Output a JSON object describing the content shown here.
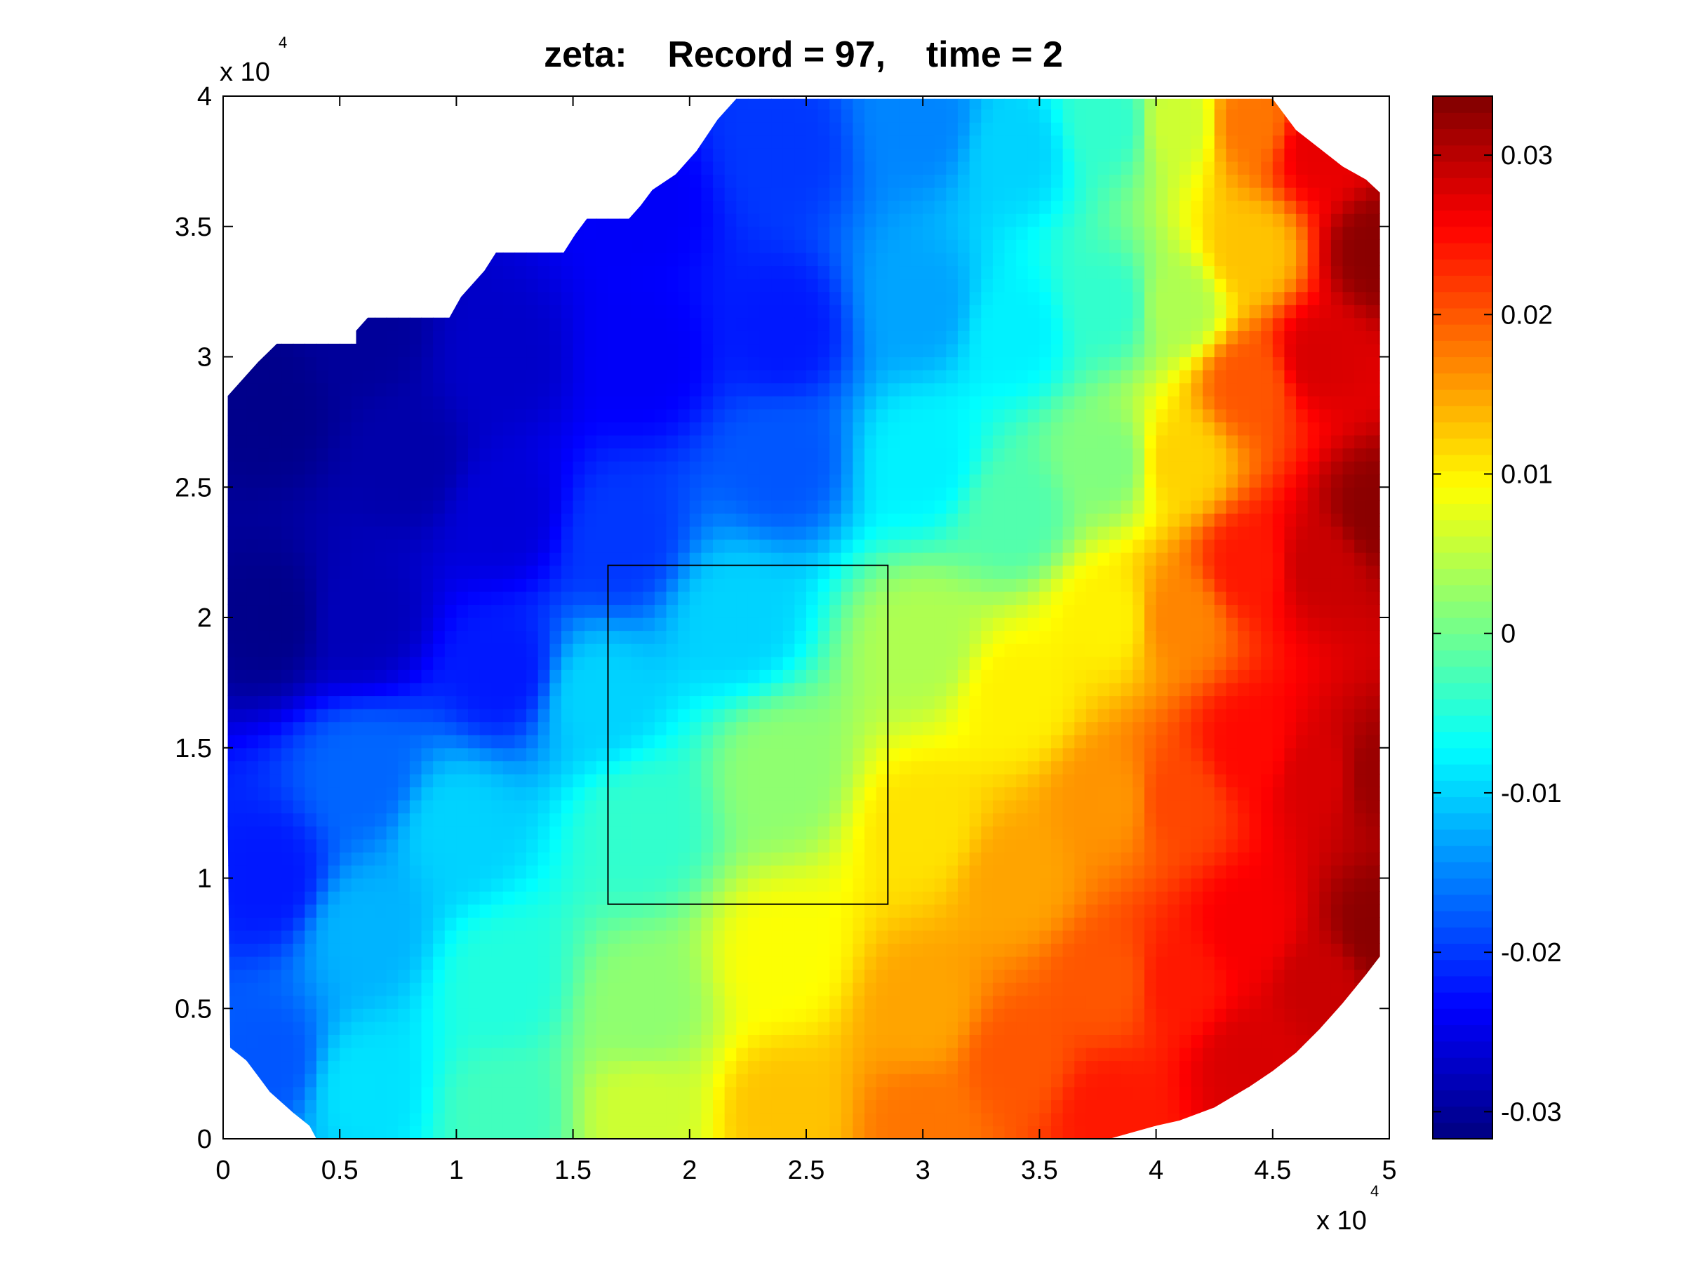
{
  "chart_data": {
    "type": "heatmap",
    "title": "zeta:    Record = 97,    time = 2",
    "x_axis": {
      "range": [
        0,
        50000
      ],
      "ticks": [
        0,
        5000,
        10000,
        15000,
        20000,
        25000,
        30000,
        35000,
        40000,
        45000,
        50000
      ],
      "tick_labels": [
        "0",
        "0.5",
        "1",
        "1.5",
        "2",
        "2.5",
        "3",
        "3.5",
        "4",
        "4.5",
        "5"
      ],
      "exponent_label_base": "x 10",
      "exponent_label_power": "4"
    },
    "y_axis": {
      "range": [
        0,
        40000
      ],
      "ticks": [
        0,
        5000,
        10000,
        15000,
        20000,
        25000,
        30000,
        35000,
        40000
      ],
      "tick_labels": [
        "0",
        "0.5",
        "1",
        "1.5",
        "2",
        "2.5",
        "3",
        "3.5",
        "4"
      ],
      "exponent_label_base": "x 10",
      "exponent_label_power": "4"
    },
    "colorbar": {
      "range": [
        -0.0317,
        0.0337
      ],
      "ticks": [
        -0.03,
        -0.02,
        -0.01,
        0,
        0.01,
        0.02,
        0.03
      ],
      "tick_labels": [
        "-0.03",
        "-0.02",
        "-0.01",
        "0",
        "0.01",
        "0.02",
        "0.03"
      ],
      "colormap": "jet"
    },
    "grid": false,
    "field_control_points": [
      [
        2000,
        28000,
        -0.031
      ],
      [
        2000,
        20000,
        -0.031
      ],
      [
        2000,
        10000,
        -0.022
      ],
      [
        2000,
        3000,
        -0.018
      ],
      [
        6000,
        31000,
        -0.03
      ],
      [
        8000,
        26000,
        -0.029
      ],
      [
        6000,
        20000,
        -0.028
      ],
      [
        6000,
        14000,
        -0.017
      ],
      [
        6000,
        8000,
        -0.012
      ],
      [
        6000,
        2000,
        -0.009
      ],
      [
        12000,
        30000,
        -0.027
      ],
      [
        12000,
        24000,
        -0.026
      ],
      [
        12000,
        18000,
        -0.022
      ],
      [
        10000,
        12000,
        -0.01
      ],
      [
        12000,
        6000,
        -0.005
      ],
      [
        12000,
        1000,
        -0.003
      ],
      [
        18000,
        36000,
        -0.024
      ],
      [
        18000,
        30000,
        -0.024
      ],
      [
        17000,
        23000,
        -0.02
      ],
      [
        16000,
        17000,
        -0.01
      ],
      [
        18000,
        12000,
        -0.004
      ],
      [
        18000,
        5000,
        0.002
      ],
      [
        18000,
        1000,
        0.006
      ],
      [
        24000,
        38000,
        -0.02
      ],
      [
        24000,
        31000,
        -0.022
      ],
      [
        24000,
        26000,
        -0.018
      ],
      [
        22000,
        20000,
        -0.01
      ],
      [
        24000,
        14000,
        0.002
      ],
      [
        24000,
        7000,
        0.009
      ],
      [
        24000,
        1000,
        0.013
      ],
      [
        30000,
        39000,
        -0.015
      ],
      [
        30000,
        32000,
        -0.013
      ],
      [
        30000,
        26000,
        -0.008
      ],
      [
        30000,
        19000,
        0.004
      ],
      [
        30000,
        12000,
        0.011
      ],
      [
        30000,
        5000,
        0.015
      ],
      [
        30000,
        500,
        0.018
      ],
      [
        34000,
        38000,
        -0.01
      ],
      [
        34000,
        31000,
        -0.008
      ],
      [
        34000,
        24000,
        -0.002
      ],
      [
        34000,
        17000,
        0.01
      ],
      [
        34000,
        10000,
        0.015
      ],
      [
        34000,
        3000,
        0.02
      ],
      [
        38000,
        39000,
        -0.004
      ],
      [
        38000,
        32000,
        -0.004
      ],
      [
        38000,
        26000,
        0.001
      ],
      [
        38000,
        20000,
        0.01
      ],
      [
        38000,
        13000,
        0.016
      ],
      [
        38000,
        6000,
        0.02
      ],
      [
        38000,
        1000,
        0.024
      ],
      [
        41000,
        39000,
        0.006
      ],
      [
        41000,
        32000,
        0.004
      ],
      [
        41000,
        26000,
        0.012
      ],
      [
        41000,
        20000,
        0.017
      ],
      [
        41000,
        13000,
        0.021
      ],
      [
        41000,
        6000,
        0.024
      ],
      [
        44000,
        39000,
        0.018
      ],
      [
        44000,
        34000,
        0.013
      ],
      [
        44000,
        29000,
        0.02
      ],
      [
        44000,
        22000,
        0.024
      ],
      [
        44000,
        15000,
        0.025
      ],
      [
        44000,
        8000,
        0.026
      ],
      [
        44000,
        3000,
        0.028
      ],
      [
        47000,
        38000,
        0.027
      ],
      [
        47000,
        30000,
        0.028
      ],
      [
        47000,
        22000,
        0.029
      ],
      [
        47000,
        14000,
        0.028
      ],
      [
        47000,
        6000,
        0.029
      ],
      [
        49500,
        34000,
        0.033
      ],
      [
        49500,
        24000,
        0.033
      ],
      [
        49500,
        14000,
        0.032
      ],
      [
        49500,
        8000,
        0.033
      ]
    ],
    "domain_outline": [
      [
        200,
        28500
      ],
      [
        1500,
        29800
      ],
      [
        2300,
        30500
      ],
      [
        5700,
        30500
      ],
      [
        5700,
        31000
      ],
      [
        6200,
        31500
      ],
      [
        9700,
        31500
      ],
      [
        10200,
        32300
      ],
      [
        11200,
        33300
      ],
      [
        11700,
        34000
      ],
      [
        14600,
        34000
      ],
      [
        15100,
        34700
      ],
      [
        15600,
        35300
      ],
      [
        17400,
        35300
      ],
      [
        17900,
        35800
      ],
      [
        18400,
        36400
      ],
      [
        19400,
        37000
      ],
      [
        20300,
        37900
      ],
      [
        21200,
        39100
      ],
      [
        22000,
        39900
      ],
      [
        45000,
        39900
      ],
      [
        45500,
        39300
      ],
      [
        46000,
        38700
      ],
      [
        47000,
        38000
      ],
      [
        48000,
        37300
      ],
      [
        49000,
        36800
      ],
      [
        49600,
        36300
      ],
      [
        49600,
        7000
      ],
      [
        49000,
        6300
      ],
      [
        48000,
        5200
      ],
      [
        47000,
        4200
      ],
      [
        46000,
        3300
      ],
      [
        45000,
        2600
      ],
      [
        44000,
        2000
      ],
      [
        42500,
        1200
      ],
      [
        41000,
        700
      ],
      [
        40000,
        500
      ],
      [
        38000,
        0
      ],
      [
        4000,
        0
      ],
      [
        3700,
        500
      ],
      [
        3000,
        1000
      ],
      [
        2000,
        1800
      ],
      [
        1500,
        2400
      ],
      [
        1000,
        3000
      ],
      [
        300,
        3500
      ],
      [
        200,
        12000
      ]
    ],
    "inset_box": {
      "x": [
        16500,
        28500
      ],
      "y": [
        9000,
        22000
      ]
    }
  }
}
